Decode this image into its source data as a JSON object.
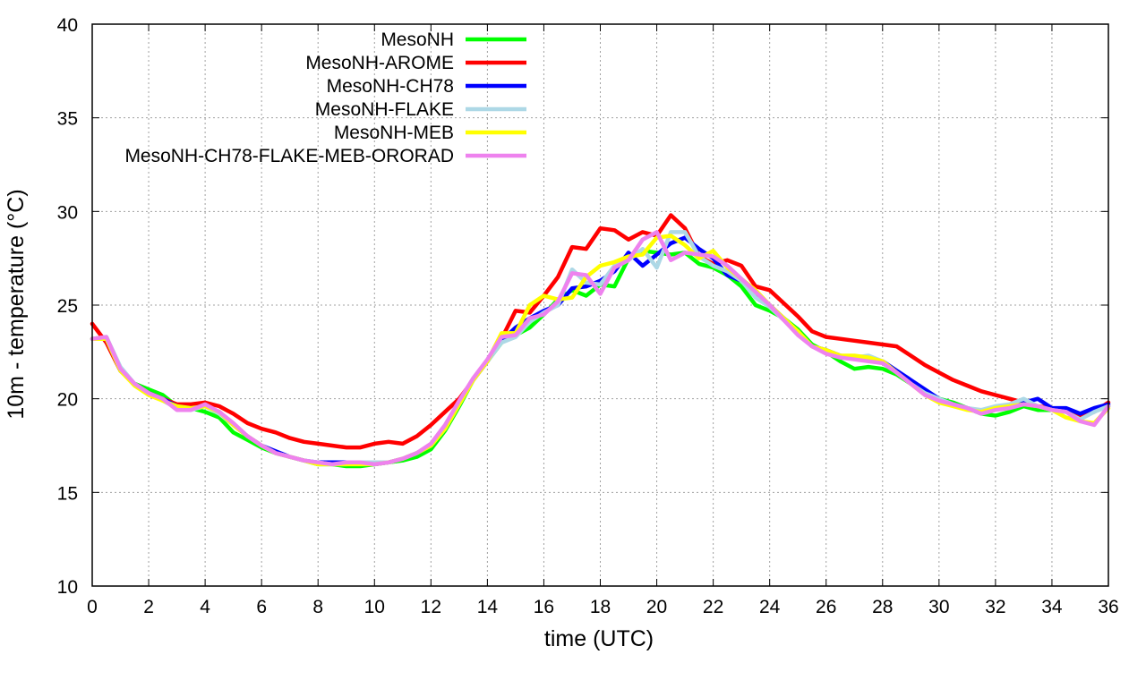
{
  "chart_data": {
    "type": "line",
    "xlabel": "time (UTC)",
    "ylabel": "10m - temperature (°C)",
    "xlim": [
      0,
      36
    ],
    "ylim": [
      10,
      40
    ],
    "xticks": [
      0,
      2,
      4,
      6,
      8,
      10,
      12,
      14,
      16,
      18,
      20,
      22,
      24,
      26,
      28,
      30,
      32,
      34,
      36
    ],
    "yticks": [
      10,
      15,
      20,
      25,
      30,
      35,
      40
    ],
    "grid": true,
    "legend_position": "top-left",
    "x": [
      0,
      0.5,
      1,
      1.5,
      2,
      2.5,
      3,
      3.5,
      4,
      4.5,
      5,
      5.5,
      6,
      6.5,
      7,
      7.5,
      8,
      8.5,
      9,
      9.5,
      10,
      10.5,
      11,
      11.5,
      12,
      12.5,
      13,
      13.5,
      14,
      14.5,
      15,
      15.5,
      16,
      16.5,
      17,
      17.5,
      18,
      18.5,
      19,
      19.5,
      20,
      20.5,
      21,
      21.5,
      22,
      22.5,
      23,
      23.5,
      24,
      24.5,
      25,
      25.5,
      26,
      26.5,
      27,
      27.5,
      28,
      28.5,
      29,
      29.5,
      30,
      30.5,
      31,
      31.5,
      32,
      32.5,
      33,
      33.5,
      34,
      34.5,
      35,
      35.5,
      36
    ],
    "series": [
      {
        "name": "MesoNH",
        "color": "#00ff00",
        "values": [
          23.2,
          23.3,
          21.6,
          20.8,
          20.5,
          20.2,
          19.6,
          19.5,
          19.3,
          19.0,
          18.2,
          17.8,
          17.4,
          17.1,
          16.9,
          16.7,
          16.5,
          16.5,
          16.4,
          16.4,
          16.5,
          16.6,
          16.7,
          16.9,
          17.3,
          18.3,
          19.6,
          21.0,
          22.0,
          23.0,
          23.4,
          23.8,
          24.5,
          25.3,
          25.8,
          25.5,
          26.1,
          26.0,
          27.5,
          27.9,
          27.8,
          27.7,
          27.8,
          27.2,
          27.0,
          26.6,
          26.0,
          25.0,
          24.7,
          24.3,
          23.7,
          22.9,
          22.5,
          22.0,
          21.6,
          21.7,
          21.6,
          21.3,
          20.8,
          20.4,
          20.0,
          19.8,
          19.5,
          19.2,
          19.1,
          19.3,
          19.6,
          19.4,
          19.4,
          19.3,
          19.0,
          19.4,
          19.6
        ]
      },
      {
        "name": "MesoNH-AROME",
        "color": "#ff0000",
        "values": [
          24.0,
          23.0,
          21.5,
          20.8,
          20.3,
          20.0,
          19.7,
          19.7,
          19.8,
          19.6,
          19.2,
          18.7,
          18.4,
          18.2,
          17.9,
          17.7,
          17.6,
          17.5,
          17.4,
          17.4,
          17.6,
          17.7,
          17.6,
          18.0,
          18.6,
          19.3,
          20.0,
          21.0,
          22.0,
          23.2,
          24.7,
          24.6,
          25.5,
          26.5,
          28.1,
          28.0,
          29.1,
          29.0,
          28.5,
          28.9,
          28.7,
          29.8,
          29.1,
          27.6,
          27.2,
          27.4,
          27.1,
          26.0,
          25.8,
          25.1,
          24.4,
          23.6,
          23.3,
          23.2,
          23.1,
          23.0,
          22.9,
          22.8,
          22.3,
          21.8,
          21.4,
          21.0,
          20.7,
          20.4,
          20.2,
          20.0,
          19.8,
          19.6,
          19.5,
          19.3,
          19.0,
          19.3,
          19.8
        ]
      },
      {
        "name": "MesoNH-CH78",
        "color": "#0000ff",
        "values": [
          23.2,
          23.2,
          21.5,
          20.8,
          20.3,
          20.0,
          19.6,
          19.5,
          19.6,
          19.3,
          18.6,
          18.0,
          17.5,
          17.2,
          16.9,
          16.7,
          16.6,
          16.6,
          16.6,
          16.6,
          16.5,
          16.6,
          16.8,
          17.1,
          17.5,
          18.5,
          19.8,
          21.0,
          22.0,
          23.1,
          23.8,
          24.3,
          24.7,
          25.0,
          25.9,
          26.0,
          26.3,
          26.8,
          27.8,
          27.1,
          27.7,
          28.3,
          28.6,
          28.0,
          27.5,
          26.6,
          26.3,
          25.6,
          25.0,
          24.3,
          23.5,
          22.8,
          22.6,
          22.3,
          22.2,
          22.1,
          22.0,
          21.5,
          21.0,
          20.5,
          20.0,
          19.7,
          19.5,
          19.3,
          19.5,
          19.6,
          19.8,
          20.0,
          19.5,
          19.5,
          19.2,
          19.5,
          19.7
        ]
      },
      {
        "name": "MesoNH-FLAKE",
        "color": "#add8e6",
        "values": [
          23.2,
          23.3,
          21.7,
          20.8,
          20.3,
          19.9,
          19.5,
          19.4,
          19.6,
          19.2,
          18.6,
          18.0,
          17.5,
          17.1,
          16.9,
          16.7,
          16.6,
          16.5,
          16.5,
          16.6,
          16.6,
          16.6,
          16.8,
          17.1,
          17.5,
          18.4,
          19.7,
          21.0,
          22.0,
          23.0,
          23.3,
          24.1,
          24.6,
          25.0,
          26.9,
          26.2,
          26.1,
          27.1,
          27.4,
          28.0,
          27.0,
          28.9,
          28.9,
          27.6,
          27.1,
          26.8,
          26.3,
          25.4,
          24.9,
          24.2,
          23.5,
          22.8,
          22.5,
          22.2,
          22.2,
          22.3,
          22.0,
          21.4,
          20.8,
          20.3,
          20.0,
          19.7,
          19.5,
          19.4,
          19.6,
          19.7,
          20.0,
          19.6,
          19.4,
          19.3,
          18.9,
          19.3,
          19.6
        ]
      },
      {
        "name": "MesoNH-MEB",
        "color": "#ffff00",
        "values": [
          23.2,
          23.2,
          21.5,
          20.7,
          20.2,
          19.9,
          19.6,
          19.5,
          19.6,
          19.3,
          18.6,
          18.0,
          17.5,
          17.1,
          16.9,
          16.7,
          16.5,
          16.5,
          16.5,
          16.5,
          16.5,
          16.6,
          16.8,
          17.1,
          17.5,
          18.4,
          19.7,
          21.0,
          22.0,
          23.5,
          23.5,
          25.0,
          25.5,
          25.3,
          25.4,
          26.5,
          27.1,
          27.3,
          27.6,
          27.7,
          28.6,
          28.7,
          28.2,
          27.5,
          27.9,
          27.0,
          26.4,
          25.8,
          25.0,
          24.3,
          23.6,
          22.8,
          22.6,
          22.3,
          22.3,
          22.2,
          22.0,
          21.4,
          20.8,
          20.2,
          19.8,
          19.6,
          19.4,
          19.3,
          19.5,
          19.6,
          19.7,
          19.6,
          19.4,
          19.0,
          18.8,
          18.7,
          19.5
        ]
      },
      {
        "name": "MesoNH-CH78-FLAKE-MEB-ORORAD",
        "color": "#ee82ee",
        "values": [
          23.2,
          23.3,
          21.6,
          20.8,
          20.3,
          20.0,
          19.4,
          19.4,
          19.7,
          19.3,
          18.7,
          18.0,
          17.5,
          17.1,
          16.9,
          16.7,
          16.6,
          16.5,
          16.6,
          16.6,
          16.5,
          16.6,
          16.8,
          17.1,
          17.6,
          18.6,
          19.9,
          21.1,
          22.1,
          23.3,
          23.4,
          24.3,
          24.5,
          25.2,
          26.7,
          26.6,
          25.6,
          27.0,
          27.4,
          28.5,
          28.9,
          27.4,
          27.8,
          27.7,
          27.6,
          27.1,
          26.4,
          25.7,
          25.0,
          24.2,
          23.4,
          22.8,
          22.4,
          22.2,
          22.1,
          22.0,
          21.9,
          21.4,
          20.8,
          20.2,
          19.9,
          19.7,
          19.5,
          19.2,
          19.4,
          19.5,
          19.7,
          19.6,
          19.4,
          19.3,
          18.8,
          18.6,
          19.6
        ]
      }
    ]
  }
}
